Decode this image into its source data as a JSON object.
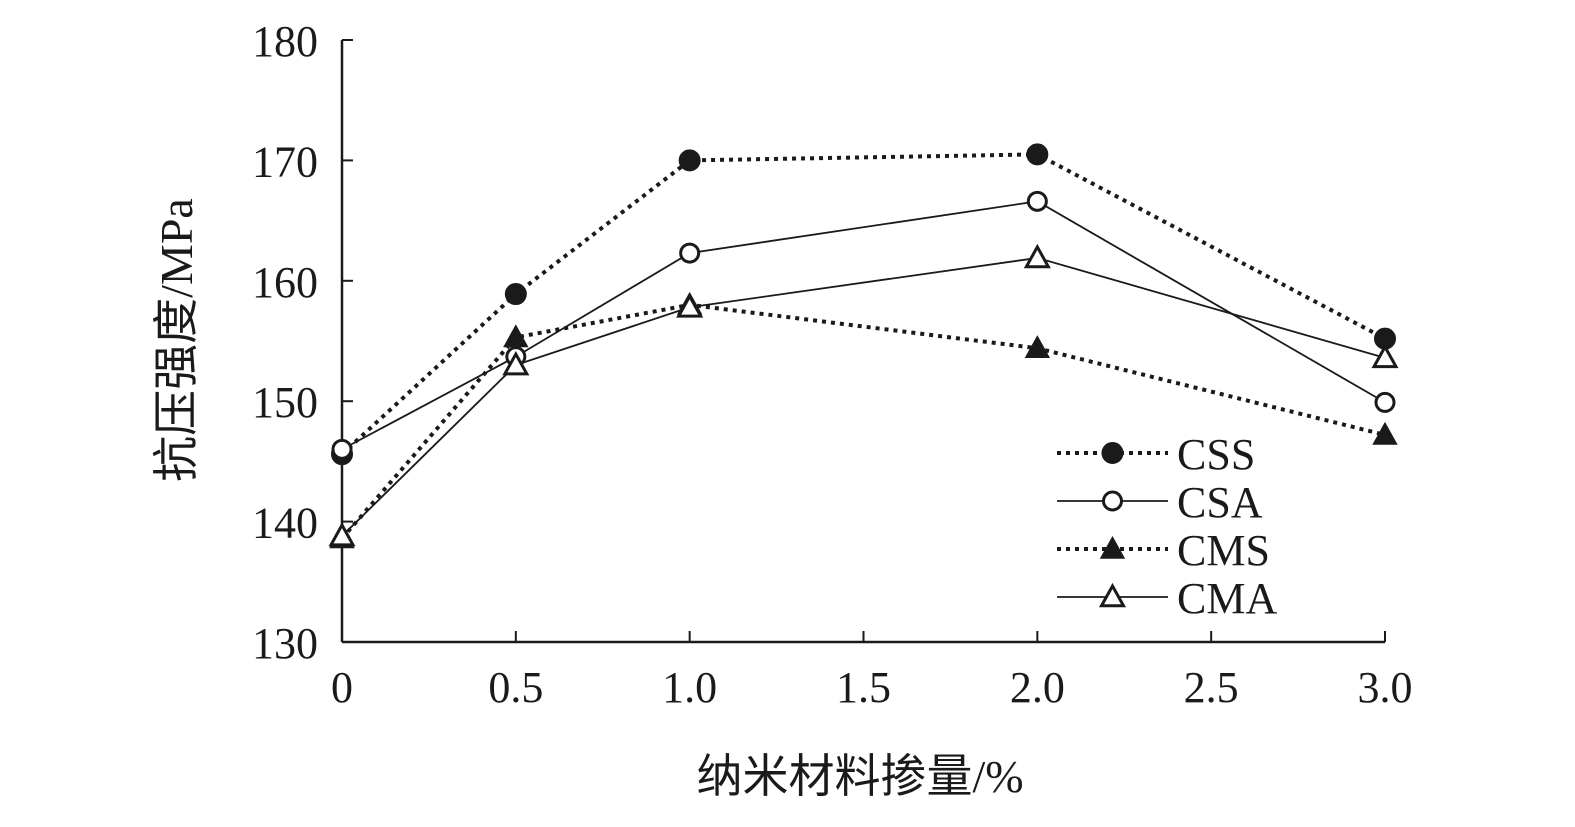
{
  "chart_data": {
    "type": "line",
    "xlabel": "纳米材料掺量/%",
    "ylabel": "抗压强度/MPa",
    "xlim": [
      0,
      3.0
    ],
    "ylim": [
      130,
      180
    ],
    "x_ticks": [
      "0",
      "0.5",
      "1.0",
      "1.5",
      "2.0",
      "2.5",
      "3.0"
    ],
    "y_ticks": [
      "130",
      "140",
      "150",
      "160",
      "170",
      "180"
    ],
    "grid": false,
    "legend_position": "bottom-right",
    "x": [
      0,
      0.5,
      1.0,
      2.0,
      3.0
    ],
    "series": [
      {
        "name": "CSS",
        "marker": "filled-circle",
        "line": "dotted",
        "values": [
          145.6,
          158.9,
          170.0,
          170.5,
          155.2
        ]
      },
      {
        "name": "CSA",
        "marker": "open-circle",
        "line": "solid",
        "values": [
          146.0,
          153.7,
          162.3,
          166.6,
          149.9
        ]
      },
      {
        "name": "CMS",
        "marker": "filled-triangle",
        "line": "dotted",
        "values": [
          138.6,
          155.3,
          158.0,
          154.4,
          147.2
        ]
      },
      {
        "name": "CMA",
        "marker": "open-triangle",
        "line": "solid",
        "values": [
          138.8,
          153.0,
          157.8,
          161.9,
          153.6
        ]
      }
    ]
  }
}
